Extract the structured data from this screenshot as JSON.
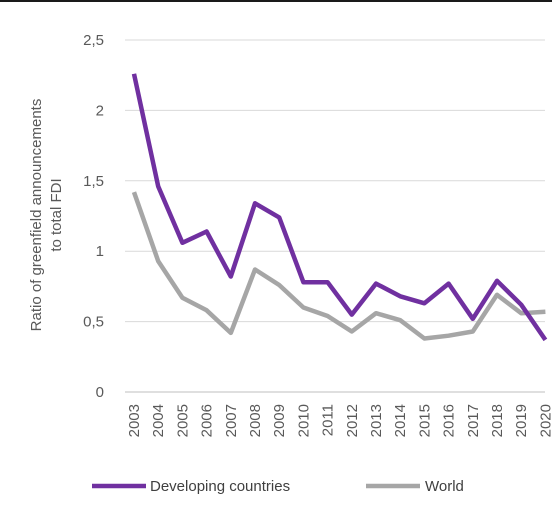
{
  "chart_data": {
    "type": "line",
    "ylabel_line1": "Ratio of greenfield announcements",
    "ylabel_line2": "to total FDI",
    "ylim": [
      0,
      2.5
    ],
    "yticks": [
      "0",
      "0,5",
      "1",
      "1,5",
      "2",
      "2,5"
    ],
    "ytick_values": [
      0,
      0.5,
      1,
      1.5,
      2,
      2.5
    ],
    "grid": true,
    "legend_position": "bottom",
    "categories": [
      "2003",
      "2004",
      "2005",
      "2006",
      "2007",
      "2008",
      "2009",
      "2010",
      "2011",
      "2012",
      "2013",
      "2014",
      "2015",
      "2016",
      "2017",
      "2018",
      "2019",
      "2020"
    ],
    "series": [
      {
        "name": "Developing countries",
        "color": "#7030A0",
        "values": [
          2.26,
          1.46,
          1.06,
          1.14,
          0.82,
          1.34,
          1.24,
          0.78,
          0.78,
          0.55,
          0.77,
          0.68,
          0.63,
          0.77,
          0.52,
          0.79,
          0.62,
          0.37
        ]
      },
      {
        "name": "World",
        "color": "#A6A6A6",
        "values": [
          1.42,
          0.93,
          0.67,
          0.58,
          0.42,
          0.87,
          0.76,
          0.6,
          0.54,
          0.43,
          0.56,
          0.51,
          0.38,
          0.4,
          0.43,
          0.69,
          0.56,
          0.57
        ]
      }
    ]
  }
}
